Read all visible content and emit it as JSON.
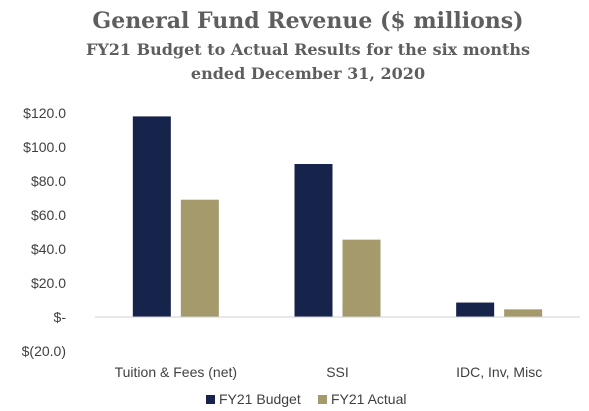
{
  "chart_data": {
    "type": "bar",
    "title": "General Fund Revenue ($ millions)",
    "subtitle_line1": "FY21  Budget to Actual Results for the six months",
    "subtitle_line2": "ended December 31, 2020",
    "categories": [
      "Tuition & Fees (net)",
      "SSI",
      "IDC, Inv, Misc"
    ],
    "series": [
      {
        "name": "FY21 Budget",
        "color": "#16234a",
        "values": [
          118.0,
          90.0,
          8.5
        ]
      },
      {
        "name": "FY21 Actual",
        "color": "#a49a6c",
        "values": [
          69.0,
          45.5,
          4.5
        ]
      }
    ],
    "ylim": [
      -20,
      120
    ],
    "yticks": [
      120,
      100,
      80,
      60,
      40,
      20,
      0,
      -20
    ],
    "ytick_labels": [
      "$120.0",
      "$100.0",
      "$80.0",
      "$60.0",
      "$40.0",
      "$20.0",
      "$-",
      "$(20.0)"
    ],
    "grid": false,
    "legend_position": "bottom"
  }
}
